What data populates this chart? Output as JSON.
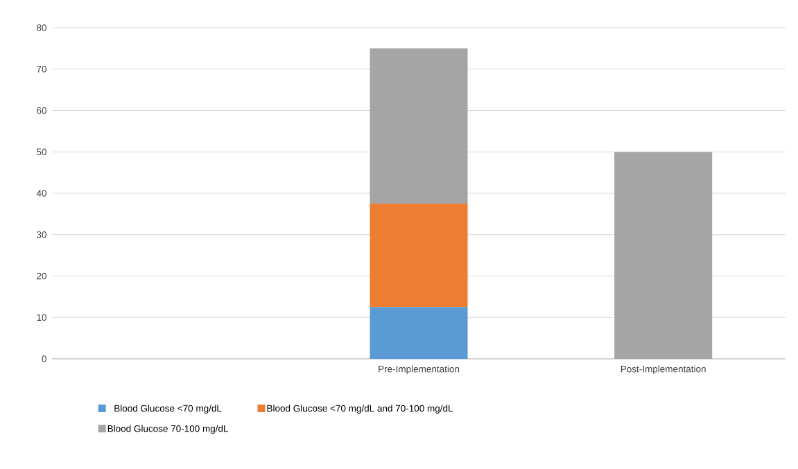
{
  "chart_data": {
    "type": "bar",
    "stacked": true,
    "categories": [
      null,
      "Pre-Implementation",
      "Post-Implementation"
    ],
    "series": [
      {
        "name": "Blood Glucose <70 mg/dL",
        "color": "#5b9bd5",
        "values": [
          null,
          12.5,
          null
        ]
      },
      {
        "name": "Blood Glucose <70 mg/dL and 70-100 mg/dL",
        "color": "#ed7d31",
        "values": [
          null,
          25,
          null
        ]
      },
      {
        "name": "Blood Glucose 70-100 mg/dL",
        "color": "#a5a5a5",
        "values": [
          null,
          37.5,
          50
        ]
      }
    ],
    "ylim": [
      0,
      80
    ],
    "yticks": [
      0,
      10,
      20,
      30,
      40,
      50,
      60,
      70,
      80
    ],
    "grid": "y",
    "legend": "bottom"
  }
}
